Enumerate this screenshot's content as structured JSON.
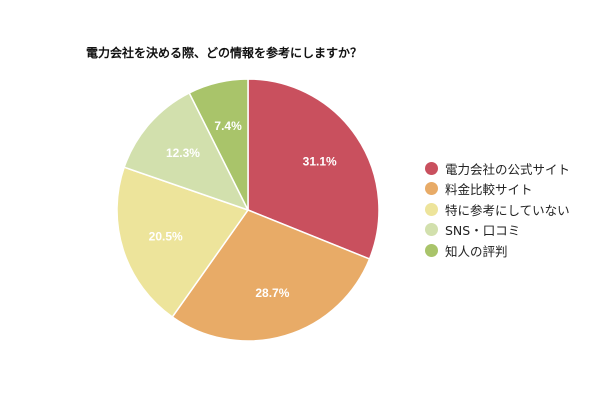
{
  "chart_data": {
    "type": "pie",
    "title": "電力会社を決める際、どの情報を参考にしますか？",
    "categories": [
      "電力会社の公式サイト",
      "料金比較サイト",
      "特に参考にしていない",
      "SNS・口コミ",
      "知人の評判"
    ],
    "values": [
      31.1,
      28.7,
      20.5,
      12.3,
      7.4
    ],
    "labels": [
      "31.1%",
      "28.7%",
      "20.5%",
      "12.3%",
      "7.4%"
    ],
    "colors": [
      "#c9505e",
      "#e8ab67",
      "#ede49b",
      "#d2e0ad",
      "#a9c46a"
    ],
    "legend_position": "right",
    "start_angle": "12 o'clock, clockwise"
  }
}
